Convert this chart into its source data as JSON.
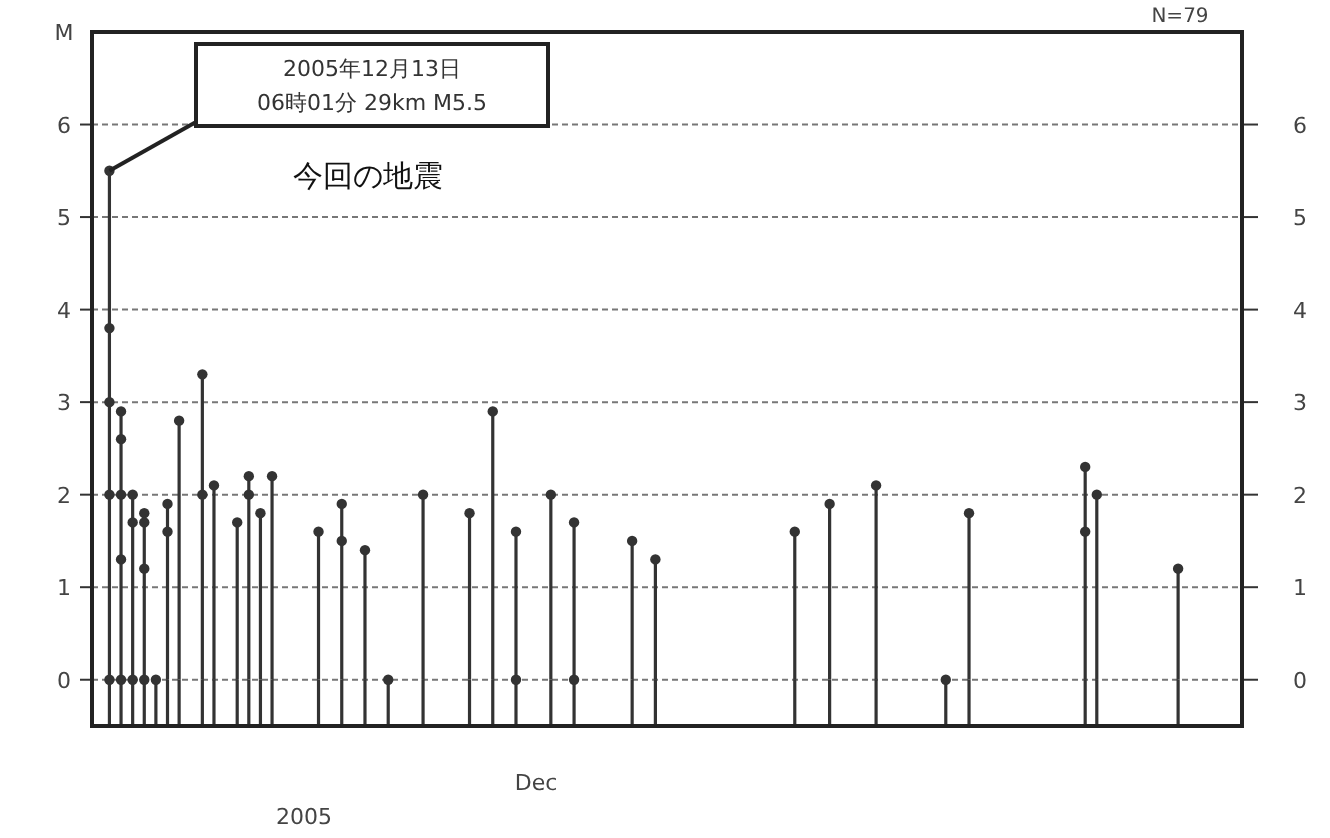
{
  "chart_data": {
    "type": "lollipop",
    "ylabel": "M",
    "xlabel": "2005",
    "annotations": [
      "2005年12月13日\n06時01分 29km  M5.5",
      "今回の地震",
      "N=79",
      "Dec"
    ],
    "categories": [
      null,
      null,
      null,
      null,
      null,
      null,
      null,
      null,
      null,
      null,
      null,
      null,
      null,
      null,
      null,
      null,
      null,
      null,
      null,
      null,
      null,
      null,
      null,
      null,
      null,
      null,
      null,
      null,
      null,
      null,
      null,
      null,
      null,
      null,
      null,
      null,
      null,
      null,
      null,
      null,
      null,
      null,
      null,
      null,
      null,
      null,
      null,
      null,
      null,
      null,
      null,
      null,
      null,
      null,
      null,
      null,
      null,
      null,
      null,
      null,
      null,
      null,
      null,
      null,
      null,
      null,
      null,
      null,
      null,
      null,
      null,
      null,
      null,
      null,
      null,
      null,
      null,
      null,
      null,
      null,
      null,
      null,
      null,
      null,
      null,
      null,
      null,
      null,
      null,
      null,
      null,
      null,
      null,
      null,
      null,
      null,
      null,
      null,
      null
    ],
    "series": [
      {
        "color": "#333333",
        "values": [
          null,
          5.5,
          2.9,
          2.0,
          1.8,
          0,
          1.9,
          2.8,
          null,
          3.3,
          2.1,
          null,
          1.7,
          2.2,
          1.8,
          2.2,
          null,
          null,
          null,
          1.6,
          null,
          1.9,
          null,
          1.4,
          null,
          0,
          null,
          null,
          2.0,
          null,
          null,
          null,
          1.8,
          null,
          2.9,
          null,
          1.6,
          null,
          null,
          2.0,
          null,
          1.7,
          null,
          null,
          null,
          null,
          1.5,
          null,
          1.3,
          null,
          null,
          null,
          null,
          null,
          null,
          null,
          null,
          null,
          null,
          null,
          1.6,
          null,
          null,
          1.9,
          null,
          null,
          null,
          2.1,
          null,
          null,
          null,
          null,
          null,
          0,
          null,
          1.8,
          null,
          null,
          null,
          null,
          null,
          null,
          null,
          null,
          null,
          2.3,
          2.0,
          null,
          null,
          null,
          null,
          null,
          null,
          1.2,
          null,
          null,
          null,
          null,
          null
        ]
      },
      {
        "color": "#333333",
        "values": [
          null,
          3.8,
          2.6,
          1.7,
          1.7,
          null,
          1.6,
          null,
          null,
          2.0,
          null,
          null,
          null,
          2.0,
          null,
          null,
          null,
          null,
          null,
          null,
          null,
          1.5,
          null,
          null,
          null,
          null,
          null,
          null,
          null,
          null,
          null,
          null,
          null,
          null,
          null,
          null,
          0,
          null,
          null,
          null,
          null,
          0,
          null,
          null,
          null,
          null,
          null,
          null,
          null,
          null,
          null,
          null,
          null,
          null,
          null,
          null,
          null,
          null,
          null,
          null,
          null,
          null,
          null,
          null,
          null,
          null,
          null,
          null,
          null,
          null,
          null,
          null,
          null,
          null,
          null,
          null,
          null,
          null,
          null,
          null,
          null,
          null,
          null,
          null,
          null,
          1.6,
          null,
          null,
          null,
          null,
          null,
          null,
          null,
          null,
          null,
          null,
          null,
          null,
          null
        ]
      },
      {
        "color": "#333333",
        "values": [
          null,
          3.0,
          2.0,
          0,
          1.2,
          null,
          null,
          null,
          null,
          null,
          null,
          null,
          null,
          null,
          null,
          null,
          null,
          null,
          null,
          null,
          null,
          null,
          null,
          null,
          null,
          null,
          null,
          null,
          null,
          null,
          null,
          null,
          null,
          null,
          null,
          null,
          null,
          null,
          null,
          null,
          null,
          null,
          null,
          null,
          null,
          null,
          null,
          null,
          null,
          null,
          null,
          null,
          null,
          null,
          null,
          null,
          null,
          null,
          null,
          null,
          null,
          null,
          null,
          null,
          null,
          null,
          null,
          null,
          null,
          null,
          null,
          null,
          null,
          null,
          null,
          null,
          null,
          null,
          null,
          null,
          null,
          null,
          null,
          null,
          null,
          null,
          null,
          null,
          null,
          null,
          null,
          null,
          null,
          null,
          null,
          null,
          null,
          null,
          null
        ]
      },
      {
        "color": "#333333",
        "values": [
          null,
          2.0,
          1.3,
          null,
          0,
          null,
          null,
          null,
          null,
          null,
          null,
          null,
          null,
          null,
          null,
          null,
          null,
          null,
          null,
          null,
          null,
          null,
          null,
          null,
          null,
          null,
          null,
          null,
          null,
          null,
          null,
          null,
          null,
          null,
          null,
          null,
          null,
          null,
          null,
          null,
          null,
          null,
          null,
          null,
          null,
          null,
          null,
          null,
          null,
          null,
          null,
          null,
          null,
          null,
          null,
          null,
          null,
          null,
          null,
          null,
          null,
          null,
          null,
          null,
          null,
          null,
          null,
          null,
          null,
          null,
          null,
          null,
          null,
          null,
          null,
          null,
          null,
          null,
          null,
          null,
          null,
          null,
          null,
          null,
          null,
          null,
          null,
          null,
          null,
          null,
          null,
          null,
          null,
          null,
          null,
          null,
          null,
          null,
          null
        ]
      },
      {
        "color": "#333333",
        "values": [
          null,
          0,
          0,
          null,
          null,
          null,
          null,
          null,
          null,
          null,
          null,
          null,
          null,
          null,
          null,
          null,
          null,
          null,
          null,
          null,
          null,
          null,
          null,
          null,
          null,
          null,
          null,
          null,
          null,
          null,
          null,
          null,
          null,
          null,
          null,
          null,
          null,
          null,
          null,
          null,
          null,
          null,
          null,
          null,
          null,
          null,
          null,
          null,
          null,
          null,
          null,
          null,
          null,
          null,
          null,
          null,
          null,
          null,
          null,
          null,
          null,
          null,
          null,
          null,
          null,
          null,
          null,
          null,
          null,
          null,
          null,
          null,
          null,
          null,
          null,
          null,
          null,
          null,
          null,
          null,
          null,
          null,
          null,
          null,
          null,
          null,
          null,
          null,
          null,
          null,
          null,
          null,
          null,
          null,
          null,
          null,
          null,
          null,
          null
        ]
      }
    ],
    "ylim": [
      -0.5,
      7
    ],
    "yticks": [
      0,
      1,
      2,
      3,
      4,
      5,
      6
    ],
    "y2lim": [
      -0.5,
      7
    ],
    "y2ticks": [
      0,
      1,
      2,
      3,
      4,
      5,
      6
    ],
    "grid": "y",
    "marker": "circle"
  }
}
